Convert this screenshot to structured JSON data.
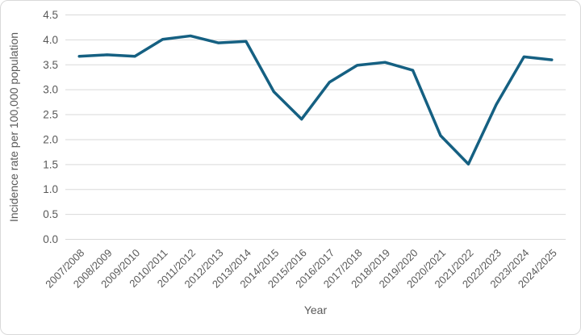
{
  "chart_data": {
    "type": "line",
    "categories": [
      "2007/2008",
      "2008/2009",
      "2009/2010",
      "2010/2011",
      "2011/2012",
      "2012/2013",
      "2013/2014",
      "2014/2015",
      "2015/2016",
      "2016/2017",
      "2017/2018",
      "2018/2019",
      "2019/2020",
      "2020/2021",
      "2021/2022",
      "2022/2023",
      "2023/2024",
      "2024/2025"
    ],
    "series": [
      {
        "name": "Incidence rate",
        "values": [
          3.67,
          3.7,
          3.67,
          4.01,
          4.08,
          3.94,
          3.97,
          2.96,
          2.41,
          3.15,
          3.49,
          3.55,
          3.39,
          2.08,
          1.51,
          2.7,
          3.66,
          3.6
        ]
      }
    ],
    "title": "",
    "xlabel": "Year",
    "ylabel": "Incidence rate per 100,000 population",
    "ylim": [
      0,
      4.5
    ],
    "ytick_step": 0.5,
    "ytick_labels": [
      "0.0",
      "0.5",
      "1.0",
      "1.5",
      "2.0",
      "2.5",
      "3.0",
      "3.5",
      "4.0",
      "4.5"
    ],
    "grid": "horizontal",
    "legend_position": "none",
    "colors": {
      "line": "#156082",
      "gridline": "#d9d9d9",
      "text": "#595959",
      "frame_border": "#d9d9d9",
      "background": "#ffffff"
    }
  }
}
